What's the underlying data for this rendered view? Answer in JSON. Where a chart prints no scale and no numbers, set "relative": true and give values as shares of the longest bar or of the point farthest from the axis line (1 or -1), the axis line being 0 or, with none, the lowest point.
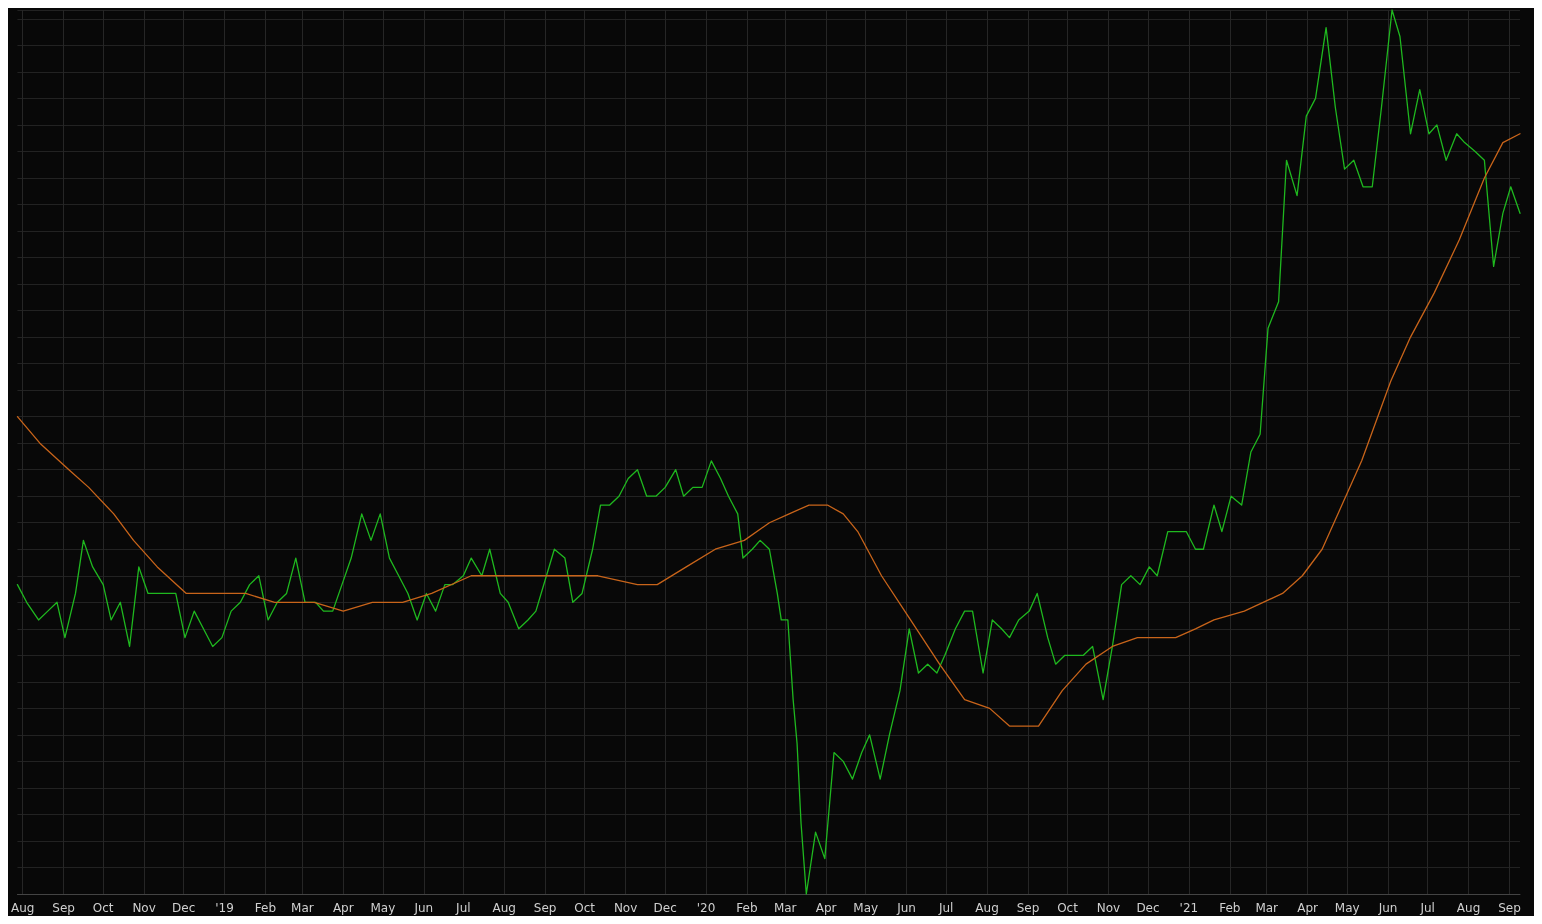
{
  "chart_data": {
    "type": "line",
    "relative": true,
    "grid": true,
    "tick_labels": "x",
    "marker": "none",
    "line_style": "solid",
    "xlim": [
      "2018-07-28",
      "2021-09-09"
    ],
    "xticks": [
      {
        "value": "2018-08-01",
        "label": "Aug"
      },
      {
        "value": "2018-09-01",
        "label": "Sep"
      },
      {
        "value": "2018-10-01",
        "label": "Oct"
      },
      {
        "value": "2018-11-01",
        "label": "Nov"
      },
      {
        "value": "2018-12-01",
        "label": "Dec"
      },
      {
        "value": "2019-01-01",
        "label": "'19"
      },
      {
        "value": "2019-02-01",
        "label": "Feb"
      },
      {
        "value": "2019-03-01",
        "label": "Mar"
      },
      {
        "value": "2019-04-01",
        "label": "Apr"
      },
      {
        "value": "2019-05-01",
        "label": "May"
      },
      {
        "value": "2019-06-01",
        "label": "Jun"
      },
      {
        "value": "2019-07-01",
        "label": "Jul"
      },
      {
        "value": "2019-08-01",
        "label": "Aug"
      },
      {
        "value": "2019-09-01",
        "label": "Sep"
      },
      {
        "value": "2019-10-01",
        "label": "Oct"
      },
      {
        "value": "2019-11-01",
        "label": "Nov"
      },
      {
        "value": "2019-12-01",
        "label": "Dec"
      },
      {
        "value": "2020-01-01",
        "label": "'20"
      },
      {
        "value": "2020-02-01",
        "label": "Feb"
      },
      {
        "value": "2020-03-01",
        "label": "Mar"
      },
      {
        "value": "2020-04-01",
        "label": "Apr"
      },
      {
        "value": "2020-05-01",
        "label": "May"
      },
      {
        "value": "2020-06-01",
        "label": "Jun"
      },
      {
        "value": "2020-07-01",
        "label": "Jul"
      },
      {
        "value": "2020-08-01",
        "label": "Aug"
      },
      {
        "value": "2020-09-01",
        "label": "Sep"
      },
      {
        "value": "2020-10-01",
        "label": "Oct"
      },
      {
        "value": "2020-11-01",
        "label": "Nov"
      },
      {
        "value": "2020-12-01",
        "label": "Dec"
      },
      {
        "value": "2021-01-01",
        "label": "'21"
      },
      {
        "value": "2021-02-01",
        "label": "Feb"
      },
      {
        "value": "2021-03-01",
        "label": "Mar"
      },
      {
        "value": "2021-04-01",
        "label": "Apr"
      },
      {
        "value": "2021-05-01",
        "label": "May"
      },
      {
        "value": "2021-06-01",
        "label": "Jun"
      },
      {
        "value": "2021-07-01",
        "label": "Jul"
      },
      {
        "value": "2021-08-01",
        "label": "Aug"
      },
      {
        "value": "2021-09-01",
        "label": "Sep"
      }
    ],
    "series": [
      {
        "color": "#1fb81f",
        "x": [
          "2018-07-28",
          "2018-08-04",
          "2018-08-13",
          "2018-08-20",
          "2018-08-27",
          "2018-09-02",
          "2018-09-10",
          "2018-09-16",
          "2018-09-23",
          "2018-10-01",
          "2018-10-07",
          "2018-10-14",
          "2018-10-21",
          "2018-10-28",
          "2018-11-04",
          "2018-11-11",
          "2018-11-18",
          "2018-11-25",
          "2018-12-02",
          "2018-12-09",
          "2018-12-16",
          "2018-12-23",
          "2018-12-30",
          "2019-01-06",
          "2019-01-13",
          "2019-01-20",
          "2019-01-27",
          "2019-02-03",
          "2019-02-10",
          "2019-02-17",
          "2019-02-24",
          "2019-03-03",
          "2019-03-11",
          "2019-03-17",
          "2019-03-24",
          "2019-03-31",
          "2019-04-07",
          "2019-04-15",
          "2019-04-22",
          "2019-04-29",
          "2019-05-06",
          "2019-05-13",
          "2019-05-20",
          "2019-05-27",
          "2019-06-03",
          "2019-06-10",
          "2019-06-17",
          "2019-06-23",
          "2019-07-01",
          "2019-07-07",
          "2019-07-15",
          "2019-07-21",
          "2019-07-29",
          "2019-08-04",
          "2019-08-12",
          "2019-08-19",
          "2019-08-25",
          "2019-09-02",
          "2019-09-08",
          "2019-09-16",
          "2019-09-22",
          "2019-09-29",
          "2019-10-07",
          "2019-10-13",
          "2019-10-20",
          "2019-10-27",
          "2019-11-03",
          "2019-11-10",
          "2019-11-17",
          "2019-11-24",
          "2019-12-01",
          "2019-12-09",
          "2019-12-15",
          "2019-12-22",
          "2019-12-29",
          "2020-01-05",
          "2020-01-12",
          "2020-01-18",
          "2020-01-25",
          "2020-01-29",
          "2020-02-05",
          "2020-02-11",
          "2020-02-18",
          "2020-02-24",
          "2020-02-27",
          "2020-03-03",
          "2020-03-07",
          "2020-03-10",
          "2020-03-13",
          "2020-03-17",
          "2020-03-24",
          "2020-03-31",
          "2020-04-07",
          "2020-04-14",
          "2020-04-21",
          "2020-04-28",
          "2020-05-04",
          "2020-05-12",
          "2020-05-19",
          "2020-05-27",
          "2020-06-03",
          "2020-06-10",
          "2020-06-17",
          "2020-06-24",
          "2020-06-30",
          "2020-07-08",
          "2020-07-15",
          "2020-07-21",
          "2020-07-29",
          "2020-08-05",
          "2020-08-12",
          "2020-08-18",
          "2020-08-25",
          "2020-09-02",
          "2020-09-08",
          "2020-09-16",
          "2020-09-22",
          "2020-09-29",
          "2020-10-06",
          "2020-10-13",
          "2020-10-20",
          "2020-10-28",
          "2020-11-04",
          "2020-11-11",
          "2020-11-18",
          "2020-11-25",
          "2020-12-02",
          "2020-12-08",
          "2020-12-16",
          "2020-12-23",
          "2020-12-30",
          "2021-01-06",
          "2021-01-12",
          "2021-01-20",
          "2021-01-26",
          "2021-02-02",
          "2021-02-10",
          "2021-02-17",
          "2021-02-24",
          "2021-03-02",
          "2021-03-10",
          "2021-03-16",
          "2021-03-24",
          "2021-03-31",
          "2021-04-07",
          "2021-04-15",
          "2021-04-22",
          "2021-04-29",
          "2021-05-06",
          "2021-05-13",
          "2021-05-20",
          "2021-05-27",
          "2021-06-04",
          "2021-06-10",
          "2021-06-18",
          "2021-06-25",
          "2021-07-02",
          "2021-07-08",
          "2021-07-15",
          "2021-07-23",
          "2021-07-29",
          "2021-08-06",
          "2021-08-13",
          "2021-08-20",
          "2021-08-27",
          "2021-09-02",
          "2021-09-09"
        ],
        "values": [
          0.35,
          0.33,
          0.31,
          0.32,
          0.33,
          0.29,
          0.34,
          0.4,
          0.37,
          0.35,
          0.31,
          0.33,
          0.28,
          0.37,
          0.34,
          0.34,
          0.34,
          0.34,
          0.29,
          0.32,
          0.3,
          0.28,
          0.29,
          0.32,
          0.33,
          0.35,
          0.36,
          0.31,
          0.33,
          0.34,
          0.38,
          0.33,
          0.33,
          0.32,
          0.32,
          0.35,
          0.38,
          0.43,
          0.4,
          0.43,
          0.38,
          0.36,
          0.34,
          0.31,
          0.34,
          0.32,
          0.35,
          0.35,
          0.36,
          0.38,
          0.36,
          0.39,
          0.34,
          0.33,
          0.3,
          0.31,
          0.32,
          0.36,
          0.39,
          0.38,
          0.33,
          0.34,
          0.39,
          0.44,
          0.44,
          0.45,
          0.47,
          0.48,
          0.45,
          0.45,
          0.46,
          0.48,
          0.45,
          0.46,
          0.46,
          0.49,
          0.47,
          0.45,
          0.43,
          0.38,
          0.39,
          0.4,
          0.39,
          0.34,
          0.31,
          0.31,
          0.22,
          0.17,
          0.08,
          0,
          0.07,
          0.04,
          0.16,
          0.15,
          0.13,
          0.16,
          0.18,
          0.13,
          0.18,
          0.23,
          0.3,
          0.25,
          0.26,
          0.25,
          0.27,
          0.3,
          0.32,
          0.32,
          0.25,
          0.31,
          0.3,
          0.29,
          0.31,
          0.32,
          0.34,
          0.29,
          0.26,
          0.27,
          0.27,
          0.27,
          0.28,
          0.22,
          0.28,
          0.35,
          0.36,
          0.35,
          0.37,
          0.36,
          0.41,
          0.41,
          0.41,
          0.39,
          0.39,
          0.44,
          0.41,
          0.45,
          0.44,
          0.5,
          0.52,
          0.64,
          0.67,
          0.83,
          0.79,
          0.88,
          0.9,
          0.98,
          0.89,
          0.82,
          0.83,
          0.8,
          0.8,
          0.89,
          1,
          0.97,
          0.86,
          0.91,
          0.86,
          0.87,
          0.83,
          0.86,
          0.85,
          0.84,
          0.83,
          0.71,
          0.77,
          0.8,
          0.77
        ]
      },
      {
        "color": "#c8641a",
        "x": [
          "2018-07-28",
          "2018-08-14",
          "2018-09-05",
          "2018-09-20",
          "2018-10-09",
          "2018-10-24",
          "2018-11-11",
          "2018-12-03",
          "2018-12-18",
          "2019-01-17",
          "2019-02-08",
          "2019-03-10",
          "2019-04-01",
          "2019-04-23",
          "2019-05-16",
          "2019-06-07",
          "2019-07-07",
          "2019-08-05",
          "2019-09-04",
          "2019-09-22",
          "2019-10-11",
          "2019-11-10",
          "2019-11-25",
          "2019-12-17",
          "2020-01-08",
          "2020-01-30",
          "2020-02-18",
          "2020-03-04",
          "2020-03-19",
          "2020-04-02",
          "2020-04-14",
          "2020-04-25",
          "2020-05-13",
          "2020-06-04",
          "2020-06-26",
          "2020-07-15",
          "2020-08-03",
          "2020-08-18",
          "2020-09-02",
          "2020-09-09",
          "2020-09-27",
          "2020-10-15",
          "2020-11-04",
          "2020-11-23",
          "2020-12-07",
          "2020-12-22",
          "2021-01-06",
          "2021-01-20",
          "2021-02-12",
          "2021-03-13",
          "2021-03-28",
          "2021-04-12",
          "2021-04-27",
          "2021-05-12",
          "2021-06-03",
          "2021-06-18",
          "2021-07-06",
          "2021-07-25",
          "2021-08-13",
          "2021-08-27",
          "2021-09-09"
        ],
        "values": [
          0.54,
          0.51,
          0.48,
          0.46,
          0.43,
          0.4,
          0.37,
          0.34,
          0.34,
          0.34,
          0.33,
          0.33,
          0.32,
          0.33,
          0.33,
          0.34,
          0.36,
          0.36,
          0.36,
          0.36,
          0.36,
          0.35,
          0.35,
          0.37,
          0.39,
          0.4,
          0.42,
          0.43,
          0.44,
          0.44,
          0.43,
          0.41,
          0.36,
          0.31,
          0.26,
          0.22,
          0.21,
          0.19,
          0.19,
          0.19,
          0.23,
          0.26,
          0.28,
          0.29,
          0.29,
          0.29,
          0.3,
          0.31,
          0.32,
          0.34,
          0.36,
          0.39,
          0.44,
          0.49,
          0.58,
          0.63,
          0.68,
          0.74,
          0.81,
          0.85,
          0.86
        ]
      }
    ]
  }
}
